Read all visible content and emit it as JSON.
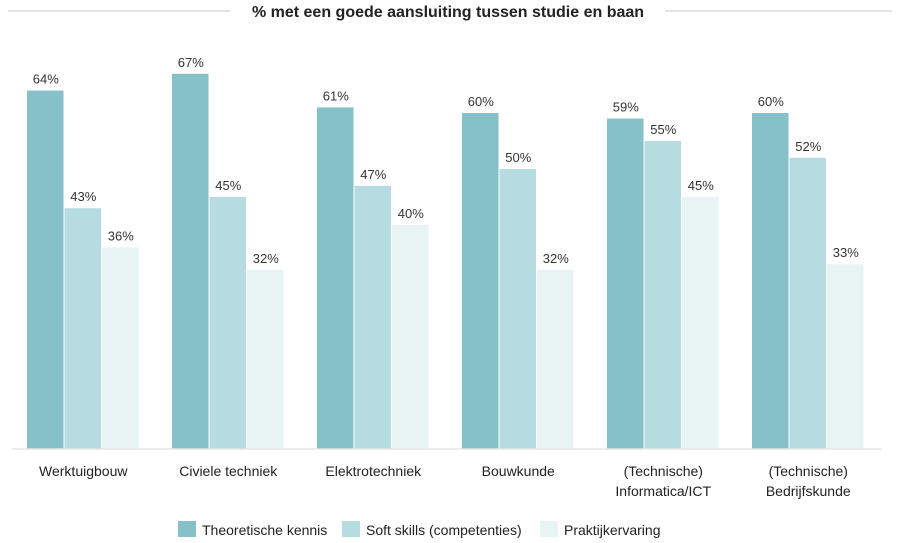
{
  "chart_data": {
    "type": "bar",
    "title": "% met een goede aansluiting tussen studie en baan",
    "categories": [
      [
        "Werktuigbouw"
      ],
      [
        "Civiele techniek"
      ],
      [
        "Elektrotechniek"
      ],
      [
        "Bouwkunde"
      ],
      [
        "(Technische)",
        "Informatica/ICT"
      ],
      [
        "(Technische)",
        "Bedrijfskunde"
      ]
    ],
    "series": [
      {
        "name": "Theoretische kennis",
        "color": "#86c0c9",
        "values": [
          64,
          67,
          61,
          60,
          59,
          60
        ]
      },
      {
        "name": "Soft skills (competenties)",
        "color": "#b6dbe1",
        "values": [
          43,
          45,
          47,
          50,
          55,
          52
        ]
      },
      {
        "name": "Praktijkervaring",
        "color": "#e8f3f4",
        "values": [
          36,
          32,
          40,
          32,
          45,
          33
        ]
      }
    ],
    "value_suffix": "%",
    "ylim": [
      0,
      80
    ],
    "grid": false,
    "legend_position": "bottom"
  }
}
